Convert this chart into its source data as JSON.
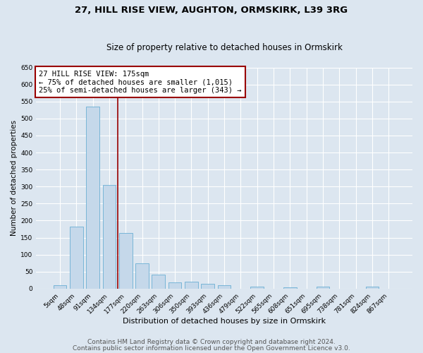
{
  "title1": "27, HILL RISE VIEW, AUGHTON, ORMSKIRK, L39 3RG",
  "title2": "Size of property relative to detached houses in Ormskirk",
  "xlabel": "Distribution of detached houses by size in Ormskirk",
  "ylabel": "Number of detached properties",
  "bar_labels": [
    "5sqm",
    "48sqm",
    "91sqm",
    "134sqm",
    "177sqm",
    "220sqm",
    "263sqm",
    "306sqm",
    "350sqm",
    "393sqm",
    "436sqm",
    "479sqm",
    "522sqm",
    "565sqm",
    "608sqm",
    "651sqm",
    "695sqm",
    "738sqm",
    "781sqm",
    "824sqm",
    "867sqm"
  ],
  "bar_values": [
    10,
    183,
    534,
    305,
    163,
    74,
    42,
    18,
    20,
    14,
    10,
    0,
    6,
    0,
    3,
    0,
    5,
    0,
    0,
    5,
    0
  ],
  "bar_color": "#c5d8ea",
  "bar_edgecolor": "#6aafd4",
  "bar_linewidth": 0.6,
  "vline_x": 3.5,
  "vline_color": "#990000",
  "vline_linewidth": 1.2,
  "annotation_text": "27 HILL RISE VIEW: 175sqm\n← 75% of detached houses are smaller (1,015)\n25% of semi-detached houses are larger (343) →",
  "annotation_box_color": "#ffffff",
  "annotation_box_edgecolor": "#990000",
  "annotation_fontsize": 7.5,
  "ylim": [
    0,
    650
  ],
  "yticks": [
    0,
    50,
    100,
    150,
    200,
    250,
    300,
    350,
    400,
    450,
    500,
    550,
    600,
    650
  ],
  "bg_color": "#dce6f0",
  "grid_color": "#ffffff",
  "footer_text1": "Contains HM Land Registry data © Crown copyright and database right 2024.",
  "footer_text2": "Contains public sector information licensed under the Open Government Licence v3.0.",
  "title1_fontsize": 9.5,
  "title2_fontsize": 8.5,
  "xlabel_fontsize": 8,
  "ylabel_fontsize": 7.5,
  "tick_fontsize": 6.5,
  "footer_fontsize": 6.5
}
